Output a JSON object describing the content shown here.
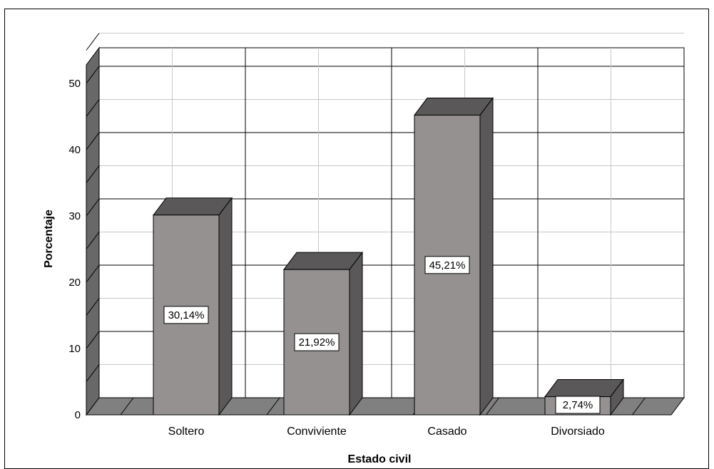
{
  "chart_data": {
    "type": "bar",
    "categories": [
      "Soltero",
      "Conviviente",
      "Casado",
      "Divorsiado"
    ],
    "values": [
      30.14,
      21.92,
      45.21,
      2.74
    ],
    "data_labels": [
      "30,14%",
      "21,92%",
      "45,21%",
      "2,74%"
    ],
    "title": "",
    "xlabel": "Estado civil",
    "ylabel": "Porcentaje",
    "ylim": [
      0,
      55
    ],
    "yticks": [
      0,
      10,
      20,
      30,
      40,
      50
    ],
    "grid": true,
    "three_d": true,
    "colors": {
      "bar_front": "#959191",
      "bar_side": "#5a5858",
      "bar_top": "#5a5858",
      "floor": "#808080",
      "wall": "#686868",
      "grid": "#000000",
      "minor_grid": "#c8c8c8"
    }
  }
}
